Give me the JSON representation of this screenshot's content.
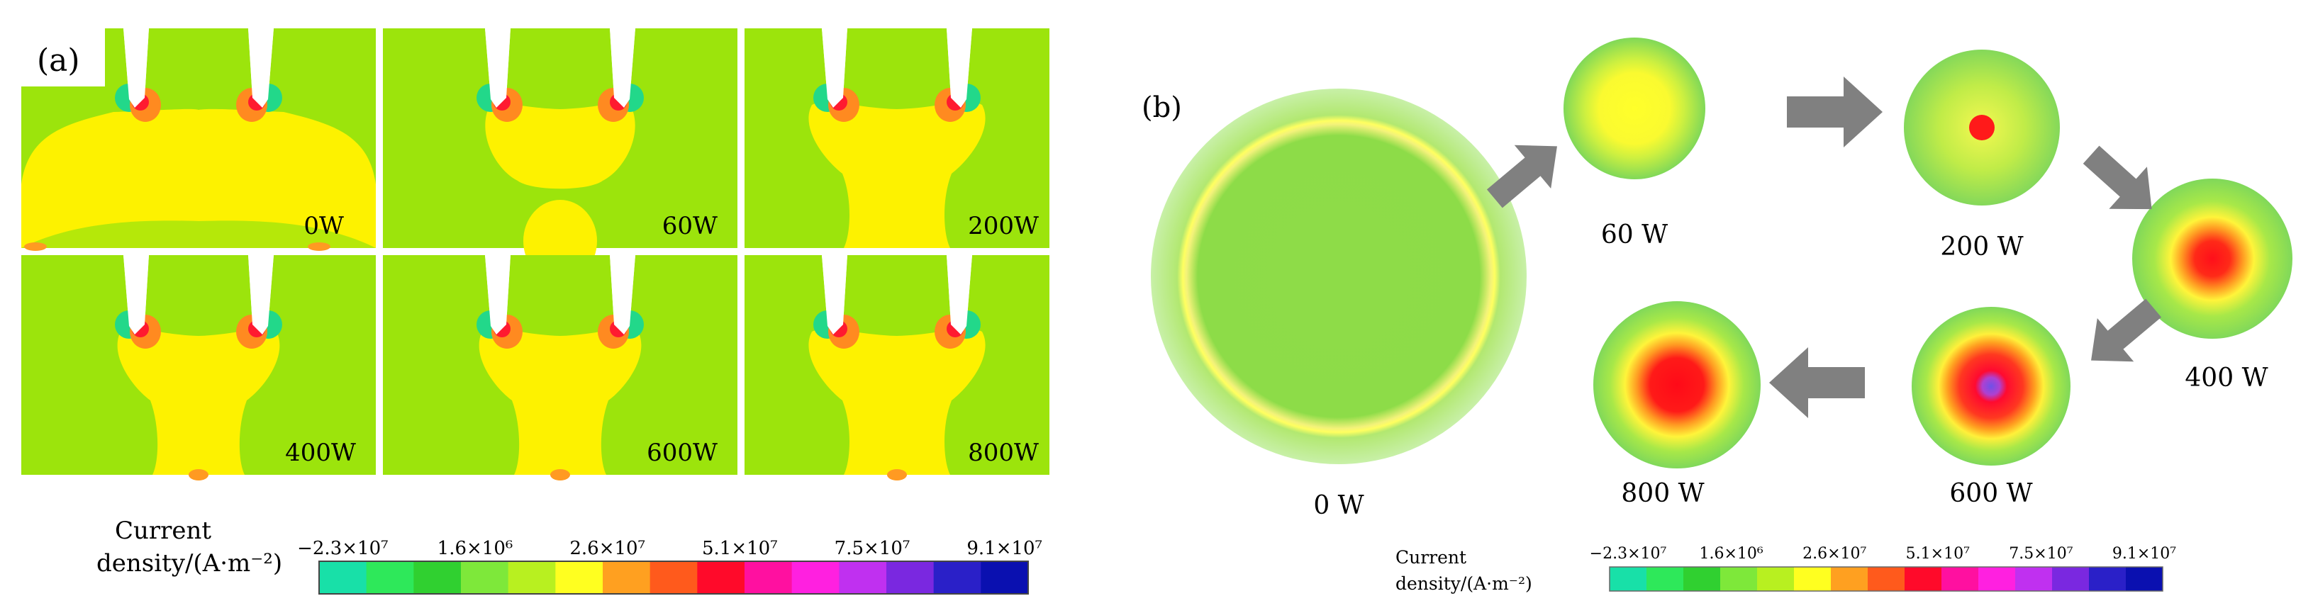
{
  "panel_a": {
    "label": "(a)",
    "tiles": [
      {
        "power": "0W"
      },
      {
        "power": "60W"
      },
      {
        "power": "200W"
      },
      {
        "power": "400W"
      },
      {
        "power": "600W"
      },
      {
        "power": "800W"
      }
    ]
  },
  "panel_b": {
    "label": "(b)",
    "stages": [
      {
        "power": "0 W"
      },
      {
        "power": "60 W"
      },
      {
        "power": "200 W"
      },
      {
        "power": "400 W"
      },
      {
        "power": "600 W"
      },
      {
        "power": "800 W"
      }
    ]
  },
  "colorbar": {
    "title_line1": "Current",
    "title_line2": "density/(A·m⁻²)",
    "ticks": [
      "−2.3×10⁷",
      "1.6×10⁶",
      "2.6×10⁷",
      "5.1×10⁷",
      "7.5×10⁷",
      "9.1×10⁷"
    ],
    "colors": [
      "#18e0a8",
      "#2ee85a",
      "#30d030",
      "#7ee83a",
      "#b8f020",
      "#ffff20",
      "#ffa020",
      "#ff5a1c",
      "#ff0a2a",
      "#ff10a0",
      "#ff20e0",
      "#c030f0",
      "#7a28e0",
      "#2a20c8",
      "#0a10b0"
    ]
  },
  "colors": {
    "background_field": "#9ce40c",
    "plasma_yellow": "#fdf200",
    "arrow_gray": "#808080"
  }
}
